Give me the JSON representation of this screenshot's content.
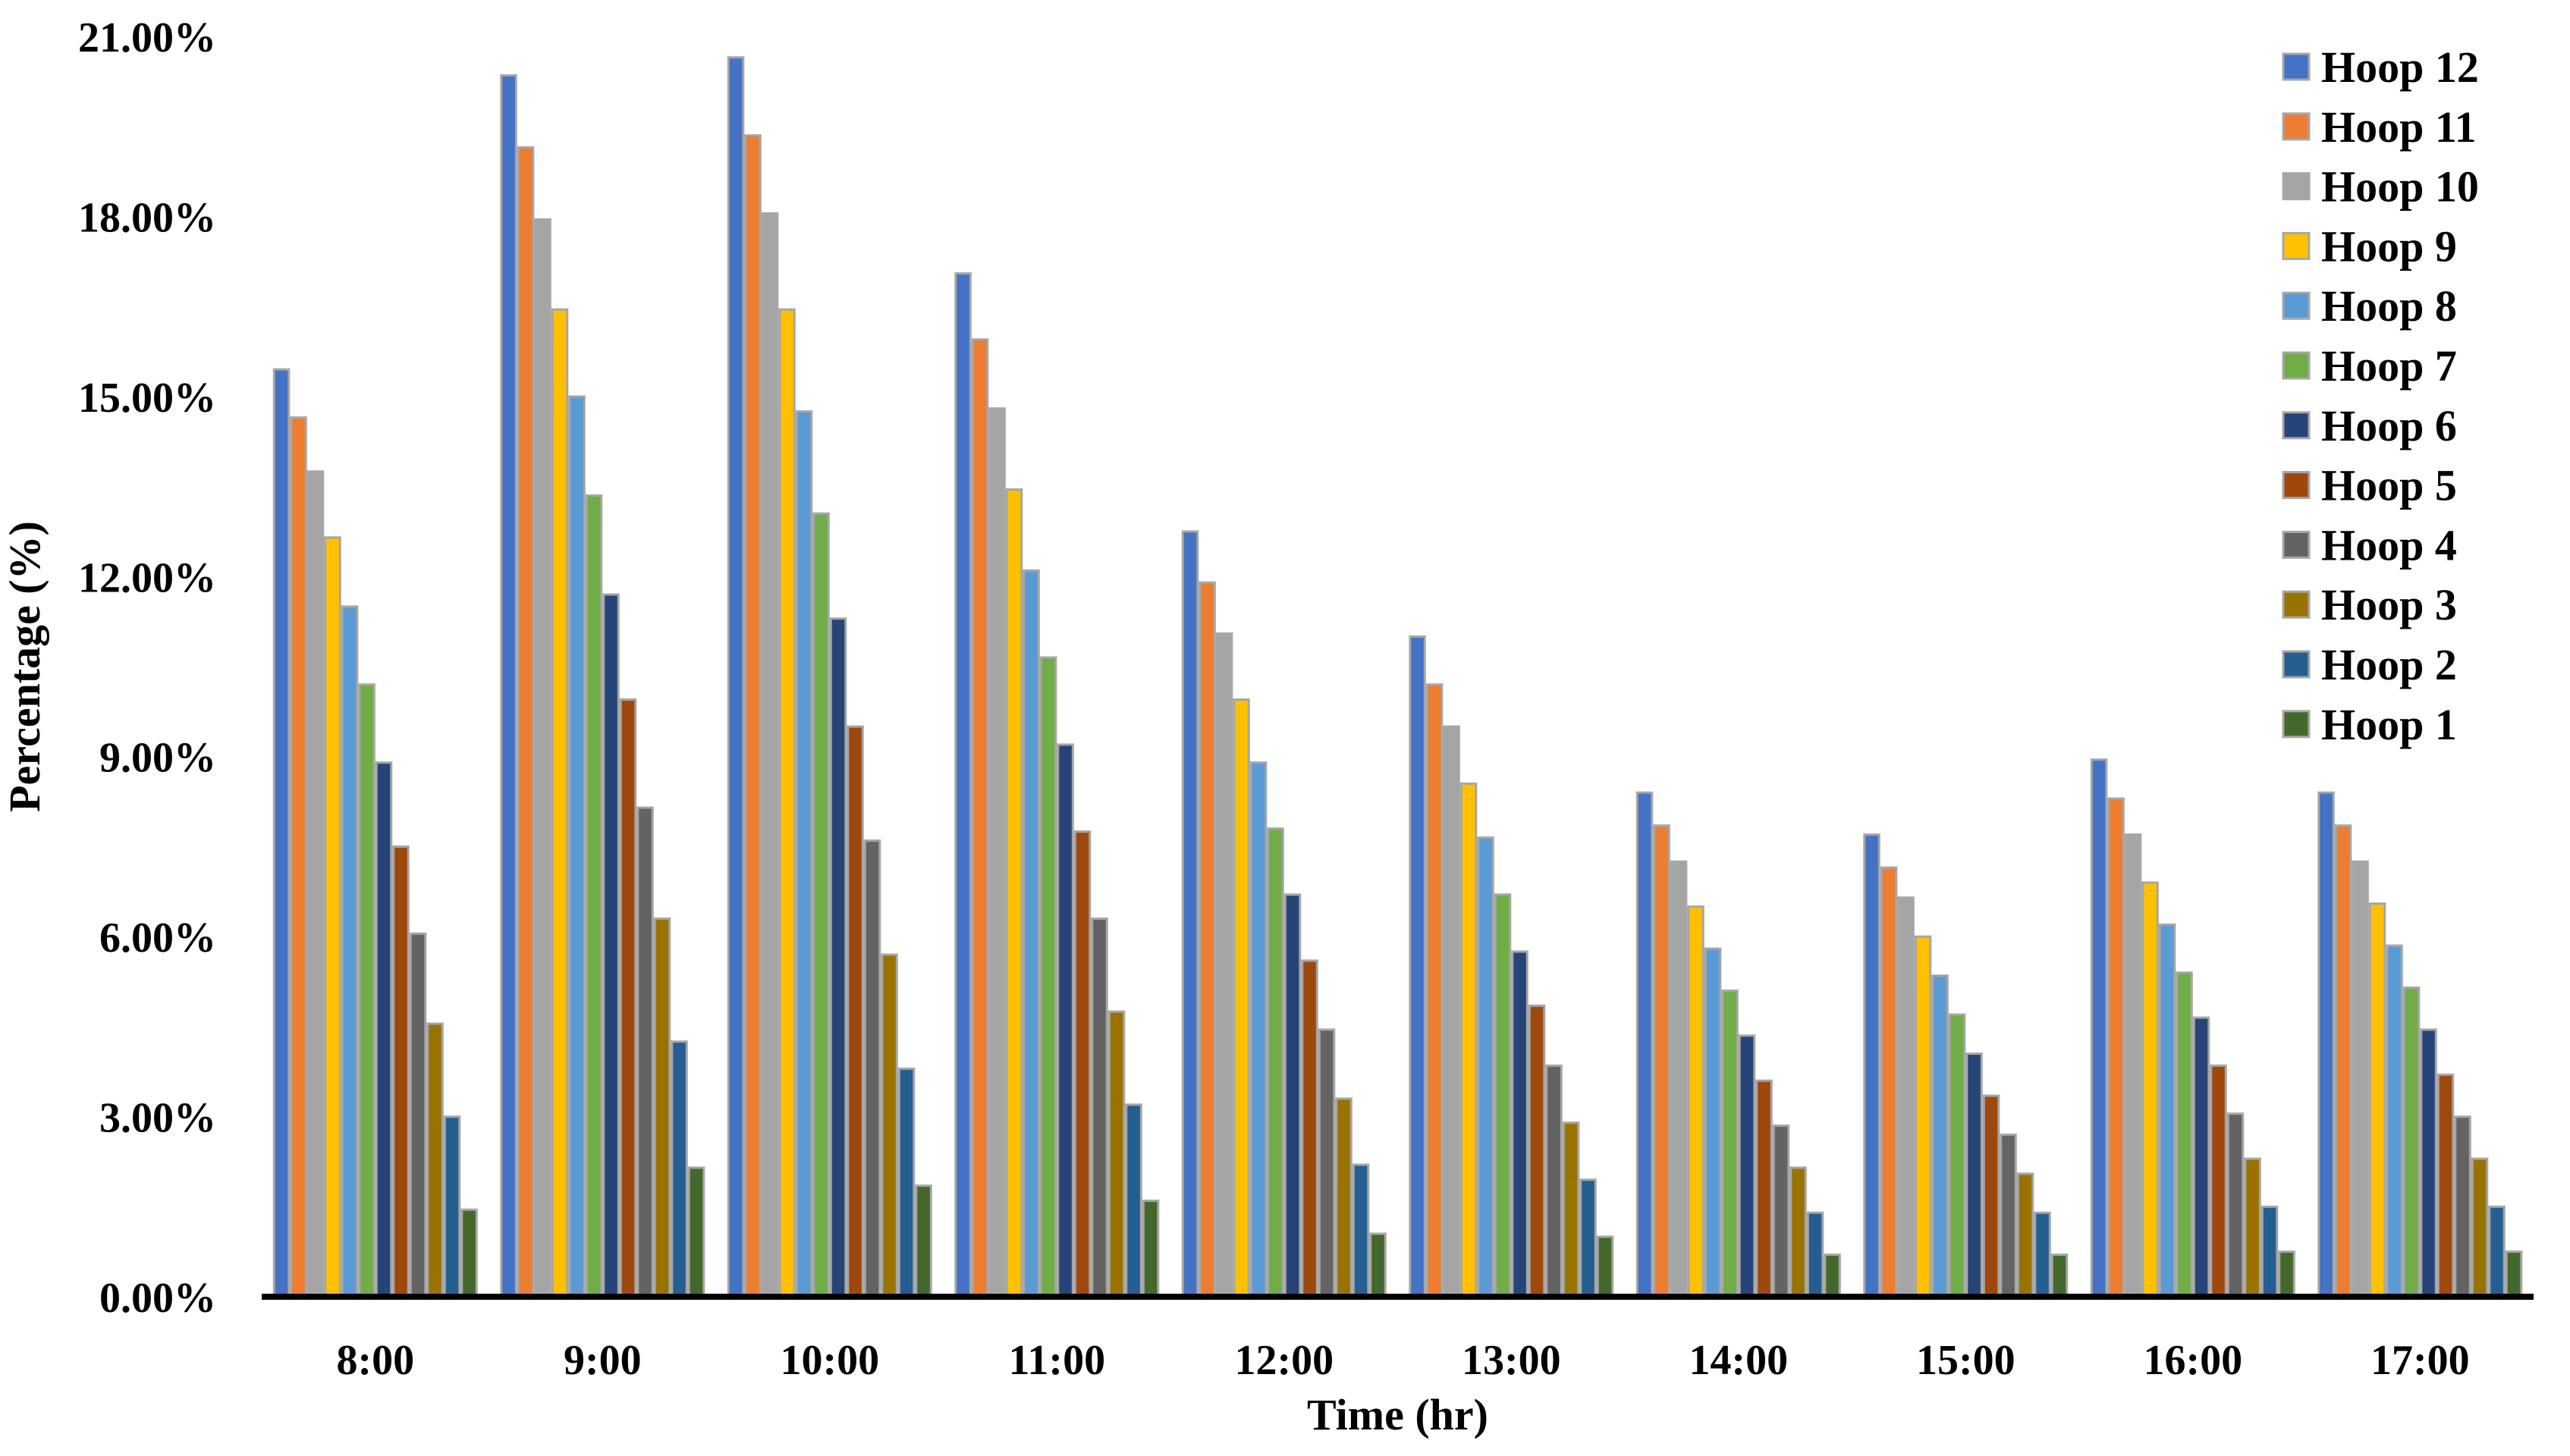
{
  "chart_data": {
    "type": "bar",
    "title": "",
    "xlabel": "Time (hr)",
    "ylabel": "Percentage (%)",
    "ylim": [
      0,
      21
    ],
    "yticks": [
      "0.00%",
      "3.00%",
      "6.00%",
      "9.00%",
      "12.00%",
      "15.00%",
      "18.00%",
      "21.00%"
    ],
    "grid": false,
    "legend_position": "top-right",
    "categories": [
      "8:00",
      "9:00",
      "10:00",
      "11:00",
      "12:00",
      "13:00",
      "14:00",
      "15:00",
      "16:00",
      "17:00"
    ],
    "series": [
      {
        "name": "Hoop 12",
        "color": "#4472C4",
        "values": [
          15.45,
          20.35,
          20.65,
          17.05,
          12.75,
          11.0,
          8.4,
          7.7,
          8.95,
          8.4
        ]
      },
      {
        "name": "Hoop 11",
        "color": "#ED7D31",
        "values": [
          14.65,
          19.15,
          19.35,
          15.95,
          11.9,
          10.2,
          7.85,
          7.15,
          8.3,
          7.85
        ]
      },
      {
        "name": "Hoop 10",
        "color": "#A5A5A5",
        "values": [
          13.75,
          17.95,
          18.05,
          14.8,
          11.05,
          9.5,
          7.25,
          6.65,
          7.7,
          7.25
        ]
      },
      {
        "name": "Hoop 9",
        "color": "#FFC000",
        "values": [
          12.65,
          16.45,
          16.45,
          13.45,
          9.95,
          8.55,
          6.5,
          6.0,
          6.9,
          6.55
        ]
      },
      {
        "name": "Hoop 8",
        "color": "#5B9BD5",
        "values": [
          11.5,
          15.0,
          14.75,
          12.1,
          8.9,
          7.65,
          5.8,
          5.35,
          6.2,
          5.85
        ]
      },
      {
        "name": "Hoop 7",
        "color": "#70AD47",
        "values": [
          10.2,
          13.35,
          13.05,
          10.65,
          7.8,
          6.7,
          5.1,
          4.7,
          5.4,
          5.15
        ]
      },
      {
        "name": "Hoop 6",
        "color": "#264478",
        "values": [
          8.9,
          11.7,
          11.3,
          9.2,
          6.7,
          5.75,
          4.35,
          4.05,
          4.65,
          4.45
        ]
      },
      {
        "name": "Hoop 5",
        "color": "#9E480E",
        "values": [
          7.5,
          9.95,
          9.5,
          7.75,
          5.6,
          4.85,
          3.6,
          3.35,
          3.85,
          3.7
        ]
      },
      {
        "name": "Hoop 4",
        "color": "#636363",
        "values": [
          6.05,
          8.15,
          7.6,
          6.3,
          4.45,
          3.85,
          2.85,
          2.7,
          3.05,
          3.0
        ]
      },
      {
        "name": "Hoop 3",
        "color": "#997300",
        "values": [
          4.55,
          6.3,
          5.7,
          4.75,
          3.3,
          2.9,
          2.15,
          2.05,
          2.3,
          2.3
        ]
      },
      {
        "name": "Hoop 2",
        "color": "#255E91",
        "values": [
          3.0,
          4.25,
          3.8,
          3.2,
          2.2,
          1.95,
          1.4,
          1.4,
          1.5,
          1.5
        ]
      },
      {
        "name": "Hoop 1",
        "color": "#43682B",
        "values": [
          1.45,
          2.15,
          1.85,
          1.6,
          1.05,
          1.0,
          0.7,
          0.7,
          0.75,
          0.75
        ]
      }
    ]
  }
}
